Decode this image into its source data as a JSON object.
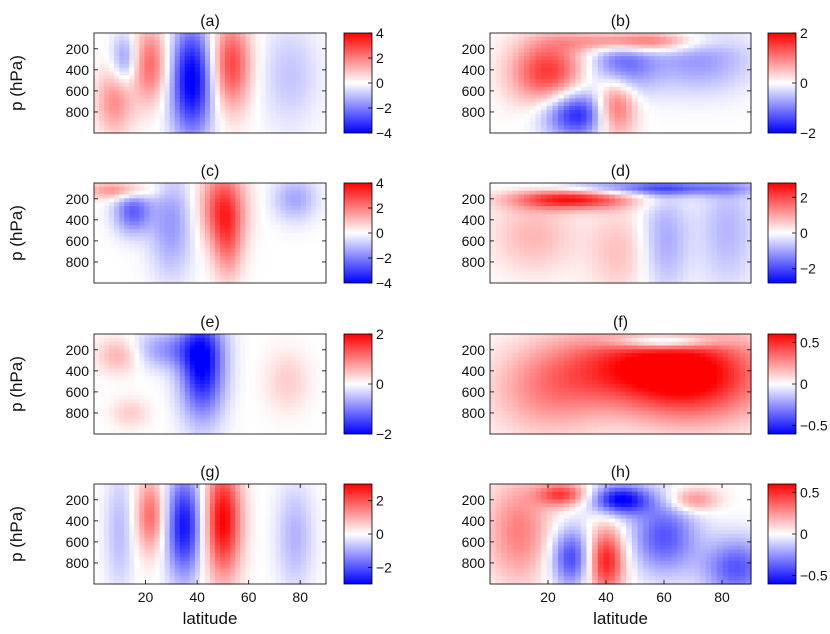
{
  "chart_data": [
    {
      "type": "heatmap",
      "panel": "(a)",
      "xlim": [
        0,
        90
      ],
      "ylim": [
        1000,
        50
      ],
      "yticks": [
        200,
        400,
        600,
        800
      ],
      "ylabel": "p (hPa)",
      "xlabel": "",
      "colorbar": {
        "min": -4,
        "max": 4,
        "ticks": [
          "4",
          "2",
          "0",
          "−2",
          "−4"
        ]
      },
      "features": [
        {
          "lat": 12,
          "p": 300,
          "value": -1.8,
          "wlat": 3.5,
          "wp": 170
        },
        {
          "lat": 8,
          "p": 700,
          "value": 1.8,
          "wlat": 5,
          "wp": 220
        },
        {
          "lat": 22,
          "p": 350,
          "value": 2.4,
          "wlat": 5,
          "wp": 260
        },
        {
          "lat": 38,
          "p": 500,
          "value": -4.2,
          "wlat": 6,
          "wp": 380
        },
        {
          "lat": 53,
          "p": 350,
          "value": 3.0,
          "wlat": 5.5,
          "wp": 300
        },
        {
          "lat": 76,
          "p": 450,
          "value": -0.9,
          "wlat": 8,
          "wp": 350
        }
      ]
    },
    {
      "type": "heatmap",
      "panel": "(b)",
      "xlim": [
        0,
        90
      ],
      "ylim": [
        1000,
        50
      ],
      "yticks": [
        200,
        400,
        600,
        800
      ],
      "ylabel": "",
      "xlabel": "",
      "colorbar": {
        "min": -2,
        "max": 2,
        "ticks": [
          "2",
          "0",
          "−2"
        ]
      },
      "features": [
        {
          "lat": 20,
          "p": 420,
          "value": 1.6,
          "wlat": 9,
          "wp": 220
        },
        {
          "lat": 30,
          "p": 820,
          "value": -1.8,
          "wlat": 8,
          "wp": 160
        },
        {
          "lat": 43,
          "p": 750,
          "value": 1.5,
          "wlat": 5,
          "wp": 200
        },
        {
          "lat": 45,
          "p": 350,
          "value": -1.2,
          "wlat": 8,
          "wp": 200
        },
        {
          "lat": 50,
          "p": 130,
          "value": 1.6,
          "wlat": 15,
          "wp": 70
        },
        {
          "lat": 72,
          "p": 300,
          "value": -0.8,
          "wlat": 13,
          "wp": 220
        }
      ]
    },
    {
      "type": "heatmap",
      "panel": "(c)",
      "xlim": [
        0,
        90
      ],
      "ylim": [
        1000,
        50
      ],
      "yticks": [
        200,
        400,
        600,
        800
      ],
      "ylabel": "p (hPa)",
      "xlabel": "",
      "colorbar": {
        "min": -4,
        "max": 4,
        "ticks": [
          "4",
          "2",
          "0",
          "−2",
          "−4"
        ]
      },
      "features": [
        {
          "lat": 15,
          "p": 320,
          "value": -2.5,
          "wlat": 5,
          "wp": 150
        },
        {
          "lat": 10,
          "p": 120,
          "value": 2.0,
          "wlat": 9,
          "wp": 60
        },
        {
          "lat": 30,
          "p": 450,
          "value": -1.6,
          "wlat": 6,
          "wp": 350
        },
        {
          "lat": 50,
          "p": 280,
          "value": 3.0,
          "wlat": 6,
          "wp": 260
        },
        {
          "lat": 52,
          "p": 650,
          "value": 1.6,
          "wlat": 4,
          "wp": 250
        },
        {
          "lat": 78,
          "p": 200,
          "value": -1.4,
          "wlat": 6,
          "wp": 150
        }
      ]
    },
    {
      "type": "heatmap",
      "panel": "(d)",
      "xlim": [
        0,
        90
      ],
      "ylim": [
        1000,
        50
      ],
      "yticks": [
        200,
        400,
        600,
        800
      ],
      "ylabel": "",
      "xlabel": "",
      "colorbar": {
        "min": -2.8,
        "max": 2.8,
        "ticks": [
          "2",
          "0",
          "−2"
        ],
        "tick_values": [
          2,
          0,
          -2
        ]
      },
      "features": [
        {
          "lat": 28,
          "p": 200,
          "value": 2.6,
          "wlat": 14,
          "wp": 70
        },
        {
          "lat": 55,
          "p": 100,
          "value": -1.8,
          "wlat": 25,
          "wp": 50
        },
        {
          "lat": 15,
          "p": 550,
          "value": 0.8,
          "wlat": 10,
          "wp": 250
        },
        {
          "lat": 45,
          "p": 700,
          "value": 0.7,
          "wlat": 8,
          "wp": 300
        },
        {
          "lat": 60,
          "p": 600,
          "value": -1.0,
          "wlat": 6,
          "wp": 350
        },
        {
          "lat": 82,
          "p": 500,
          "value": -0.8,
          "wlat": 7,
          "wp": 400
        }
      ]
    },
    {
      "type": "heatmap",
      "panel": "(e)",
      "xlim": [
        0,
        90
      ],
      "ylim": [
        1000,
        50
      ],
      "yticks": [
        200,
        400,
        600,
        800
      ],
      "ylabel": "p (hPa)",
      "xlabel": "",
      "colorbar": {
        "min": -2,
        "max": 2,
        "ticks": [
          "2",
          "0",
          "−2"
        ]
      },
      "features": [
        {
          "lat": 28,
          "p": 200,
          "value": -0.8,
          "wlat": 10,
          "wp": 130
        },
        {
          "lat": 42,
          "p": 350,
          "value": -2.0,
          "wlat": 6,
          "wp": 350
        },
        {
          "lat": 10,
          "p": 250,
          "value": 0.7,
          "wlat": 6,
          "wp": 120
        },
        {
          "lat": 14,
          "p": 800,
          "value": 0.4,
          "wlat": 5,
          "wp": 100
        },
        {
          "lat": 75,
          "p": 500,
          "value": 0.4,
          "wlat": 6,
          "wp": 200
        }
      ]
    },
    {
      "type": "heatmap",
      "panel": "(f)",
      "xlim": [
        0,
        90
      ],
      "ylim": [
        1000,
        50
      ],
      "yticks": [
        200,
        400,
        600,
        800
      ],
      "ylabel": "",
      "xlabel": "",
      "colorbar": {
        "min": -0.6,
        "max": 0.6,
        "ticks": [
          "0.5",
          "0",
          "−0.5"
        ],
        "tick_values": [
          0.5,
          0,
          -0.5
        ]
      },
      "features": [
        {
          "lat": 70,
          "p": 450,
          "value": 0.6,
          "wlat": 18,
          "wp": 300
        },
        {
          "lat": 45,
          "p": 350,
          "value": 0.35,
          "wlat": 18,
          "wp": 250
        },
        {
          "lat": 20,
          "p": 600,
          "value": 0.25,
          "wlat": 14,
          "wp": 300
        },
        {
          "lat": 60,
          "p": 120,
          "value": -0.45,
          "wlat": 12,
          "wp": 50
        }
      ]
    },
    {
      "type": "heatmap",
      "panel": "(g)",
      "xlim": [
        0,
        90
      ],
      "ylim": [
        1000,
        50
      ],
      "yticks": [
        200,
        400,
        600,
        800
      ],
      "ylabel": "p (hPa)",
      "xlabel": "latitude",
      "xticks": [
        20,
        40,
        60,
        80
      ],
      "colorbar": {
        "min": -3,
        "max": 3,
        "ticks": [
          "2",
          "0",
          "−2"
        ],
        "tick_values": [
          2,
          0,
          -2
        ]
      },
      "features": [
        {
          "lat": 22,
          "p": 350,
          "value": 1.8,
          "wlat": 4,
          "wp": 250
        },
        {
          "lat": 35,
          "p": 450,
          "value": -2.8,
          "wlat": 5,
          "wp": 350
        },
        {
          "lat": 50,
          "p": 400,
          "value": 3.0,
          "wlat": 5,
          "wp": 380
        },
        {
          "lat": 10,
          "p": 500,
          "value": -0.8,
          "wlat": 4,
          "wp": 400
        },
        {
          "lat": 78,
          "p": 550,
          "value": -0.9,
          "wlat": 5,
          "wp": 350
        }
      ]
    },
    {
      "type": "heatmap",
      "panel": "(h)",
      "xlim": [
        0,
        90
      ],
      "ylim": [
        1000,
        50
      ],
      "yticks": [
        200,
        400,
        600,
        800
      ],
      "ylabel": "",
      "xlabel": "latitude",
      "xticks": [
        20,
        40,
        60,
        80
      ],
      "colorbar": {
        "min": -0.6,
        "max": 0.6,
        "ticks": [
          "0.5",
          "0",
          "−0.5"
        ],
        "tick_values": [
          0.5,
          0,
          -0.5
        ]
      },
      "features": [
        {
          "lat": 45,
          "p": 200,
          "value": -0.6,
          "wlat": 7,
          "wp": 100
        },
        {
          "lat": 25,
          "p": 150,
          "value": 0.45,
          "wlat": 6,
          "wp": 80
        },
        {
          "lat": 40,
          "p": 780,
          "value": 0.55,
          "wlat": 4.5,
          "wp": 220
        },
        {
          "lat": 28,
          "p": 750,
          "value": -0.45,
          "wlat": 5,
          "wp": 200
        },
        {
          "lat": 60,
          "p": 550,
          "value": -0.4,
          "wlat": 8,
          "wp": 250
        },
        {
          "lat": 85,
          "p": 850,
          "value": -0.4,
          "wlat": 8,
          "wp": 200
        },
        {
          "lat": 10,
          "p": 500,
          "value": 0.3,
          "wlat": 8,
          "wp": 350
        },
        {
          "lat": 70,
          "p": 200,
          "value": 0.3,
          "wlat": 6,
          "wp": 80
        }
      ]
    }
  ]
}
